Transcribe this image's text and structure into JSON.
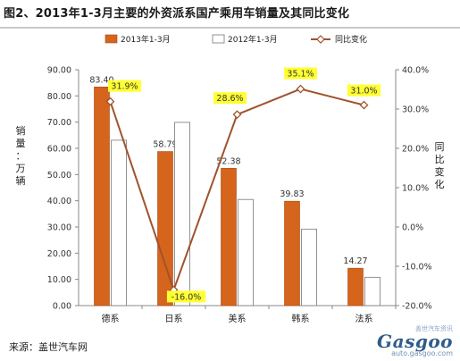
{
  "title": "图2、2013年1-3月主要的外资派系国产乘用车销量及其同比变化",
  "source": "来源：盖世汽车网",
  "watermark": {
    "top": "盖世汽车资讯",
    "logo": "Gasgoo",
    "url": "auto.gasgoo.com"
  },
  "chart_data": {
    "type": "bar",
    "categories": [
      "德系",
      "日系",
      "美系",
      "韩系",
      "法系"
    ],
    "series": [
      {
        "name": "2013年1-3月",
        "type": "bar",
        "axis": "left",
        "color": "#D5641C",
        "values": [
          83.4,
          58.79,
          52.38,
          39.83,
          14.27
        ],
        "labels": [
          "83.40",
          "58.79",
          "52.38",
          "39.83",
          "14.27"
        ]
      },
      {
        "name": "2012年1-3月",
        "type": "bar",
        "axis": "left",
        "color": "#FFFFFF",
        "values": [
          63.1,
          69.9,
          40.5,
          29.2,
          10.8
        ]
      },
      {
        "name": "同比变化",
        "type": "line",
        "axis": "right",
        "color": "#A0522D",
        "values": [
          31.9,
          -16.0,
          28.6,
          35.1,
          31.0
        ],
        "labels": [
          "31.9%",
          "-16.0%",
          "28.6%",
          "35.1%",
          "31.0%"
        ]
      }
    ],
    "ylabel": "销量：万辆",
    "y2label": "同比变化",
    "ylim": [
      0,
      90
    ],
    "y2lim": [
      -20,
      40
    ],
    "yticks": [
      "0.00",
      "10.00",
      "20.00",
      "30.00",
      "40.00",
      "50.00",
      "60.00",
      "70.00",
      "80.00",
      "90.00"
    ],
    "y2ticks": [
      "-20.0%",
      "-10.0%",
      "0.0%",
      "10.0%",
      "20.0%",
      "30.0%",
      "40.0%"
    ],
    "legend": "top",
    "grid": false
  }
}
